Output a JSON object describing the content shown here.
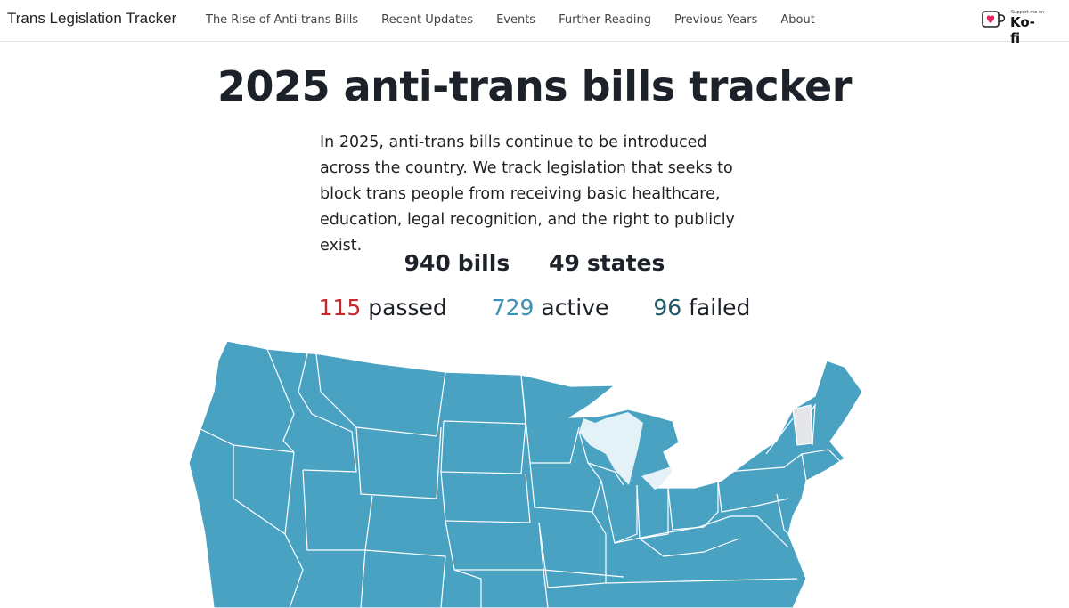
{
  "nav": {
    "brand": "Trans Legislation Tracker",
    "links": [
      "The Rise of Anti-trans Bills",
      "Recent Updates",
      "Events",
      "Further Reading",
      "Previous Years",
      "About"
    ],
    "kofi_small": "Support me on",
    "kofi_label": "Ko-fi"
  },
  "main": {
    "title": "2025 anti-trans bills tracker",
    "intro": "In 2025, anti-trans bills continue to be introduced across the country. We track legislation that seeks to block trans people from receiving basic healthcare, education, legal recognition, and the right to publicly exist.",
    "totals": {
      "bills_count": "940",
      "bills_label": "bills",
      "states_count": "49",
      "states_label": "states"
    },
    "status": {
      "passed_count": "115",
      "passed_label": "passed",
      "active_count": "729",
      "active_label": "active",
      "failed_count": "96",
      "failed_label": "failed"
    }
  },
  "colors": {
    "passed": "#c6282b",
    "active": "#3a91b3",
    "failed": "#1d5a6a",
    "map_fill": "#4aa2c3",
    "map_no_bills": "#e4e6ea"
  },
  "icons": {
    "kofi": "ko-fi-cup-icon"
  },
  "map": {
    "highlighted_state_without_bills": "Vermont"
  }
}
